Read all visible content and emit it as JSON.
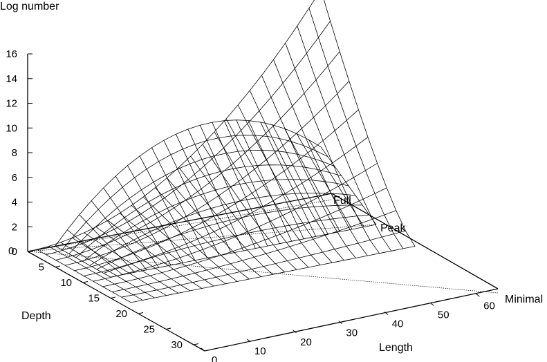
{
  "chart_data": {
    "type": "surface3d",
    "title": "",
    "zlabel": "Log number",
    "ylabel": "Depth",
    "xlabel": "Length",
    "x_ticks": [
      0,
      10,
      20,
      30,
      40,
      50,
      60
    ],
    "y_ticks": [
      5,
      10,
      15,
      20,
      25,
      30
    ],
    "y_origin_label": "0",
    "z_ticks": [
      0,
      2,
      4,
      6,
      8,
      10,
      12,
      14,
      16
    ],
    "xlim": [
      0,
      64
    ],
    "ylim": [
      0,
      32
    ],
    "zlim": [
      0,
      16
    ],
    "grid": false,
    "legend": [],
    "series": [
      {
        "name": "Full",
        "depth_at_far_edge": 2,
        "peak_log_number": 16.5,
        "peak_length": 64
      },
      {
        "name": "Peak",
        "depth_at_far_edge": 10,
        "peak_log_number": 7.5,
        "peak_length": 40
      },
      {
        "name": "Minimal",
        "depth_at_far_edge": 32,
        "peak_log_number": 0.3,
        "peak_length": 64
      }
    ]
  }
}
